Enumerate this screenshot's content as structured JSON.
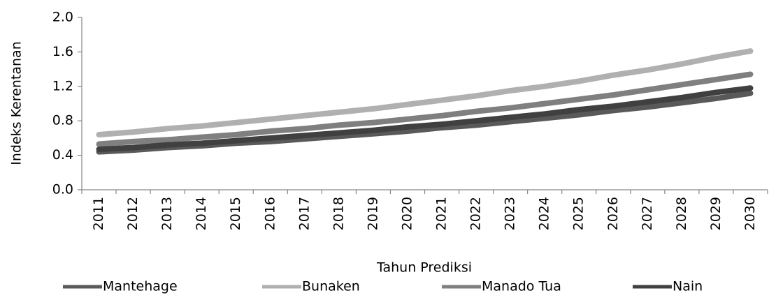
{
  "chart_data": {
    "type": "line",
    "x_label": "Tahun Prediksi",
    "y_label": "Indeks Kerentanan",
    "categories": [
      "2011",
      "2012",
      "2013",
      "2014",
      "2015",
      "2016",
      "2017",
      "2018",
      "2019",
      "2020",
      "2021",
      "2022",
      "2023",
      "2024",
      "2025",
      "2026",
      "2027",
      "2028",
      "2029",
      "2030"
    ],
    "series": [
      {
        "name": "Mantehage",
        "color": "#595959",
        "values": [
          0.44,
          0.46,
          0.49,
          0.51,
          0.54,
          0.56,
          0.59,
          0.62,
          0.65,
          0.68,
          0.72,
          0.75,
          0.79,
          0.83,
          0.87,
          0.92,
          0.96,
          1.01,
          1.06,
          1.12
        ]
      },
      {
        "name": "Bunaken",
        "color": "#b0b0b0",
        "values": [
          0.64,
          0.67,
          0.71,
          0.74,
          0.78,
          0.82,
          0.86,
          0.9,
          0.94,
          0.99,
          1.04,
          1.09,
          1.15,
          1.2,
          1.26,
          1.33,
          1.39,
          1.46,
          1.54,
          1.61
        ]
      },
      {
        "name": "Manado Tua",
        "color": "#7f7f7f",
        "values": [
          0.53,
          0.56,
          0.58,
          0.61,
          0.64,
          0.68,
          0.71,
          0.75,
          0.78,
          0.82,
          0.86,
          0.91,
          0.95,
          1.0,
          1.05,
          1.1,
          1.16,
          1.22,
          1.28,
          1.34
        ]
      },
      {
        "name": "Nain",
        "color": "#404040",
        "values": [
          0.47,
          0.49,
          0.52,
          0.54,
          0.57,
          0.6,
          0.63,
          0.66,
          0.69,
          0.73,
          0.76,
          0.8,
          0.84,
          0.88,
          0.93,
          0.97,
          1.02,
          1.07,
          1.13,
          1.18
        ]
      }
    ],
    "ylim": [
      0,
      2
    ],
    "yticks": [
      {
        "value": 0,
        "label": "0.0"
      },
      0.4,
      0.8,
      1.2,
      1.6,
      {
        "value": 2,
        "label": "2.0"
      }
    ],
    "legend": "bottom"
  }
}
